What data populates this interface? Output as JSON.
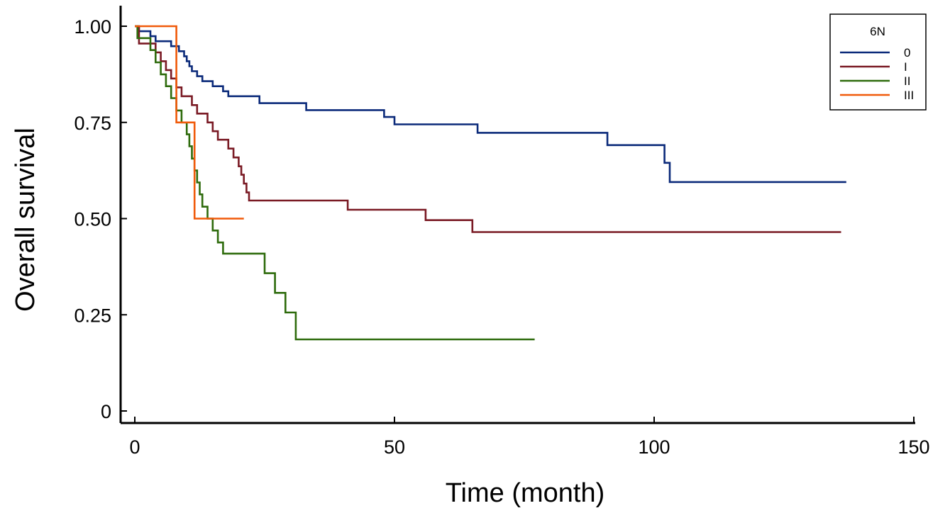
{
  "chart_data": {
    "type": "line",
    "subtype": "kaplan-meier step",
    "title": "",
    "xlabel": "Time (month)",
    "ylabel": "Overall survival",
    "xlim": [
      0,
      150
    ],
    "ylim": [
      0,
      1.0
    ],
    "xticks": [
      0,
      50,
      100,
      150
    ],
    "xtick_labels": [
      "0",
      "50",
      "100",
      "150"
    ],
    "yticks": [
      0,
      0.25,
      0.5,
      0.75,
      1.0
    ],
    "ytick_labels": [
      "0",
      "0.25",
      "0.50",
      "0.75",
      "1.00"
    ],
    "grid": false,
    "legend": {
      "title": "6N",
      "placement": "top-right"
    },
    "series": [
      {
        "name": "0",
        "color": "#0b2a7a",
        "points": [
          [
            0,
            1.0
          ],
          [
            0.8,
            0.987
          ],
          [
            3,
            0.974
          ],
          [
            4,
            0.961
          ],
          [
            7,
            0.948
          ],
          [
            8.5,
            0.935
          ],
          [
            9.5,
            0.922
          ],
          [
            10,
            0.909
          ],
          [
            10.5,
            0.896
          ],
          [
            11,
            0.883
          ],
          [
            12,
            0.87
          ],
          [
            13,
            0.857
          ],
          [
            14,
            0.857
          ],
          [
            15,
            0.844
          ],
          [
            17,
            0.831
          ],
          [
            18,
            0.818
          ],
          [
            20,
            0.818
          ],
          [
            24,
            0.8
          ],
          [
            30,
            0.8
          ],
          [
            33,
            0.782
          ],
          [
            48,
            0.764
          ],
          [
            50,
            0.745
          ],
          [
            60,
            0.745
          ],
          [
            66,
            0.723
          ],
          [
            85,
            0.723
          ],
          [
            91,
            0.691
          ],
          [
            98,
            0.691
          ],
          [
            102,
            0.645
          ],
          [
            103,
            0.595
          ],
          [
            137,
            0.595
          ]
        ]
      },
      {
        "name": "I",
        "color": "#7a1a24",
        "points": [
          [
            0,
            1.0
          ],
          [
            0.8,
            0.955
          ],
          [
            4,
            0.932
          ],
          [
            5,
            0.909
          ],
          [
            6,
            0.886
          ],
          [
            7,
            0.864
          ],
          [
            8,
            0.841
          ],
          [
            9,
            0.818
          ],
          [
            10,
            0.818
          ],
          [
            11,
            0.795
          ],
          [
            12,
            0.773
          ],
          [
            14,
            0.75
          ],
          [
            15,
            0.727
          ],
          [
            16,
            0.705
          ],
          [
            18,
            0.682
          ],
          [
            19,
            0.659
          ],
          [
            20,
            0.636
          ],
          [
            20.5,
            0.614
          ],
          [
            21,
            0.591
          ],
          [
            21.5,
            0.568
          ],
          [
            22,
            0.547
          ],
          [
            30,
            0.547
          ],
          [
            41,
            0.523
          ],
          [
            50,
            0.523
          ],
          [
            56,
            0.496
          ],
          [
            60,
            0.496
          ],
          [
            65,
            0.465
          ],
          [
            136,
            0.465
          ]
        ]
      },
      {
        "name": "II",
        "color": "#2e6b0c",
        "points": [
          [
            0,
            1.0
          ],
          [
            0.5,
            0.969
          ],
          [
            3,
            0.938
          ],
          [
            4,
            0.906
          ],
          [
            5,
            0.875
          ],
          [
            6,
            0.844
          ],
          [
            7,
            0.813
          ],
          [
            8,
            0.781
          ],
          [
            9,
            0.75
          ],
          [
            10,
            0.719
          ],
          [
            10.5,
            0.688
          ],
          [
            11,
            0.656
          ],
          [
            11.5,
            0.625
          ],
          [
            12,
            0.594
          ],
          [
            12.5,
            0.563
          ],
          [
            13,
            0.531
          ],
          [
            14,
            0.5
          ],
          [
            15,
            0.469
          ],
          [
            16,
            0.438
          ],
          [
            17,
            0.409
          ],
          [
            22,
            0.409
          ],
          [
            25,
            0.358
          ],
          [
            27,
            0.307
          ],
          [
            29,
            0.256
          ],
          [
            31,
            0.186
          ],
          [
            77,
            0.186
          ]
        ]
      },
      {
        "name": "III",
        "color": "#f05a0a",
        "points": [
          [
            0,
            1.0
          ],
          [
            7.5,
            1.0
          ],
          [
            8,
            0.75
          ],
          [
            11,
            0.75
          ],
          [
            11.5,
            0.5
          ],
          [
            21,
            0.5
          ]
        ]
      }
    ]
  }
}
